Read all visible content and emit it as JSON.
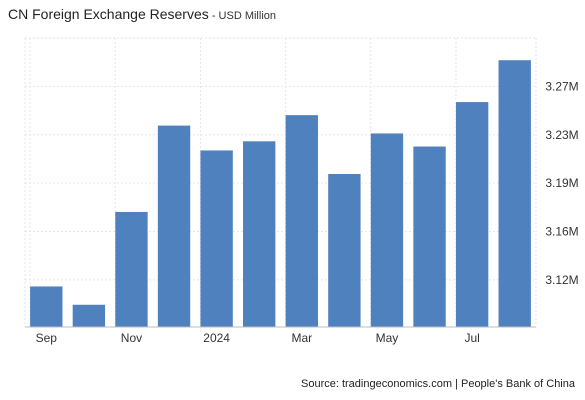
{
  "chart_data": {
    "type": "bar",
    "title": "CN Foreign Exchange Reserves",
    "subtitle": " - USD Million",
    "categories": [
      "2023-09",
      "2023-10",
      "2023-11",
      "2023-12",
      "2024-01",
      "2024-02",
      "2024-03",
      "2024-04",
      "2024-05",
      "2024-06",
      "2024-07",
      "2024-08"
    ],
    "values": [
      3115,
      3101,
      3172,
      3238,
      3219,
      3226,
      3246,
      3201,
      3232,
      3222,
      3256,
      3288
    ],
    "x_tick_labels": [
      "Sep",
      "Nov",
      "2024",
      "Mar",
      "May",
      "Jul"
    ],
    "x_tick_categories": [
      "2023-09",
      "2023-11",
      "2024-01",
      "2024-03",
      "2024-05",
      "2024-07"
    ],
    "y_tick_labels": [
      "3.12M",
      "3.16M",
      "3.19M",
      "3.23M",
      "3.27M"
    ],
    "y_tick_values": [
      3120,
      3157,
      3194,
      3231,
      3268
    ],
    "ylim": [
      3084,
      3305
    ],
    "y_axis_position": "right",
    "grid": true,
    "bar_color": "#4e81bd"
  },
  "source": "Source: tradingeconomics.com | People's Bank of China"
}
